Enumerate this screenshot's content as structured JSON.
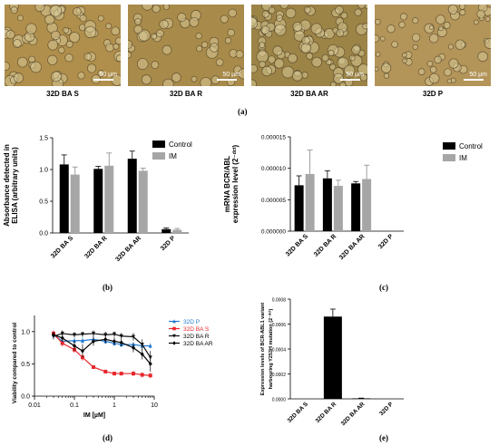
{
  "micrographs": [
    {
      "label": "32D BA S",
      "scale_text": "50 µm",
      "bg": "#b08f4c"
    },
    {
      "label": "32D BA  R",
      "scale_text": "50 µm",
      "bg": "#a88a4a"
    },
    {
      "label": "32D BA  AR",
      "scale_text": "50 µm",
      "bg": "#9c8346"
    },
    {
      "label": "32D P",
      "scale_text": "50 µm",
      "bg": "#b39459"
    }
  ],
  "panel_letters": {
    "a": "(a)",
    "b": "(b)",
    "c": "(c)",
    "d": "(d)",
    "e": "(e)"
  },
  "chart_data": [
    {
      "id": "b",
      "type": "bar",
      "ylabel_lines": [
        "Absorbance detected in",
        "ELISA (arbitrary units)"
      ],
      "ylim": [
        0,
        1.5
      ],
      "yticks": [
        "0.0",
        "0.5",
        "1.0",
        "1.5"
      ],
      "categories": [
        "32D BA S",
        "32D BA R",
        "32D BA AR",
        "32D P"
      ],
      "series": [
        {
          "name": "Control",
          "color": "#000000",
          "values": [
            1.08,
            1.01,
            1.17,
            0.06
          ],
          "errors": [
            0.15,
            0.04,
            0.12,
            0.02
          ]
        },
        {
          "name": "IM",
          "color": "#a6a6a6",
          "values": [
            0.92,
            1.06,
            0.98,
            0.05
          ],
          "errors": [
            0.12,
            0.2,
            0.04,
            0.02
          ]
        }
      ],
      "legend": "top-right"
    },
    {
      "id": "c",
      "type": "bar",
      "ylabel_lines": [
        "mRNA BCR/ABL",
        "expression level (2⁻ᵈᶜᵗ)"
      ],
      "ylim": [
        0,
        1.5e-05
      ],
      "yticks": [
        "0.000000",
        "0.000005",
        "0.000010",
        "0.000015"
      ],
      "categories": [
        "32D BA S",
        "32D BA R",
        "32D BA AR",
        "32D P"
      ],
      "series": [
        {
          "name": "Control",
          "color": "#000000",
          "values": [
            7.3e-06,
            8.4e-06,
            7.6e-06,
            0.0
          ],
          "errors": [
            1.5e-06,
            1.2e-06,
            3e-07,
            0.0
          ]
        },
        {
          "name": "IM",
          "color": "#a6a6a6",
          "values": [
            9.1e-06,
            7.2e-06,
            8.3e-06,
            0.0
          ],
          "errors": [
            3.8e-06,
            9e-07,
            2.2e-06,
            0.0
          ]
        }
      ],
      "legend": "top-right"
    },
    {
      "id": "d",
      "type": "line",
      "xscale": "log",
      "xlabel": "IM [µM]",
      "ylabel_lines": [
        "Viability compared to control"
      ],
      "xlim": [
        0.01,
        10
      ],
      "ylim": [
        0,
        1.25
      ],
      "xticks": [
        {
          "v": 0.01,
          "t": "0.01"
        },
        {
          "v": 0.1,
          "t": "0.1"
        },
        {
          "v": 1,
          "t": "1"
        },
        {
          "v": 10,
          "t": "10"
        }
      ],
      "yticks": [
        "0.0",
        "0.5",
        "1.0"
      ],
      "x": [
        0.03,
        0.05,
        0.1,
        0.16,
        0.3,
        0.6,
        1,
        1.5,
        3,
        5,
        8
      ],
      "series": [
        {
          "name": "32D P",
          "color": "#1f78d1",
          "marker": "triangle",
          "values": [
            0.95,
            0.85,
            0.86,
            0.86,
            0.88,
            0.85,
            0.82,
            0.8,
            0.8,
            0.78,
            0.78
          ],
          "errors": [
            0.04,
            0.04,
            0.04,
            0.05,
            0.04,
            0.04,
            0.04,
            0.04,
            0.04,
            0.04,
            0.04
          ]
        },
        {
          "name": "32D BA S",
          "color": "#e8282d",
          "marker": "square",
          "values": [
            0.97,
            0.82,
            0.72,
            0.6,
            0.45,
            0.38,
            0.35,
            0.35,
            0.35,
            0.33,
            0.32
          ],
          "errors": [
            0.05,
            0.05,
            0.05,
            0.05,
            0.03,
            0.03,
            0.03,
            0.03,
            0.04,
            0.04,
            0.04
          ]
        },
        {
          "name": "32D BA R",
          "color": "#111111",
          "marker": "triangle-down",
          "values": [
            0.93,
            0.97,
            0.95,
            0.96,
            0.97,
            0.95,
            0.96,
            0.93,
            0.92,
            0.8,
            0.6
          ],
          "errors": [
            0.05,
            0.05,
            0.04,
            0.04,
            0.05,
            0.05,
            0.04,
            0.05,
            0.06,
            0.08,
            0.1
          ]
        },
        {
          "name": "32D BA AR",
          "color": "#000000",
          "marker": "diamond",
          "values": [
            0.95,
            0.9,
            0.78,
            0.7,
            0.85,
            0.88,
            0.85,
            0.83,
            0.75,
            0.65,
            0.5
          ],
          "errors": [
            0.05,
            0.06,
            0.08,
            0.1,
            0.07,
            0.06,
            0.06,
            0.06,
            0.07,
            0.08,
            0.12
          ]
        }
      ],
      "legend": "top-right"
    },
    {
      "id": "e",
      "type": "bar",
      "ylabel_lines": [
        "Expression levels of BCR-ABL1 variant",
        "harbouring Y253H mutation (2⁻ᵈᶜᵗ)"
      ],
      "ylim": [
        0,
        0.0008
      ],
      "yticks": [
        "0.0000",
        "0.0002",
        "0.0004",
        "0.0006",
        "0.0008"
      ],
      "categories": [
        "32D BA S",
        "32D BA R",
        "32D BA AR",
        "32D P"
      ],
      "series": [
        {
          "name": "",
          "color": "#000000",
          "values": [
            0.0,
            0.00066,
            4e-06,
            0.0
          ],
          "errors": [
            0.0,
            6e-05,
            2e-06,
            0.0
          ]
        }
      ]
    }
  ]
}
